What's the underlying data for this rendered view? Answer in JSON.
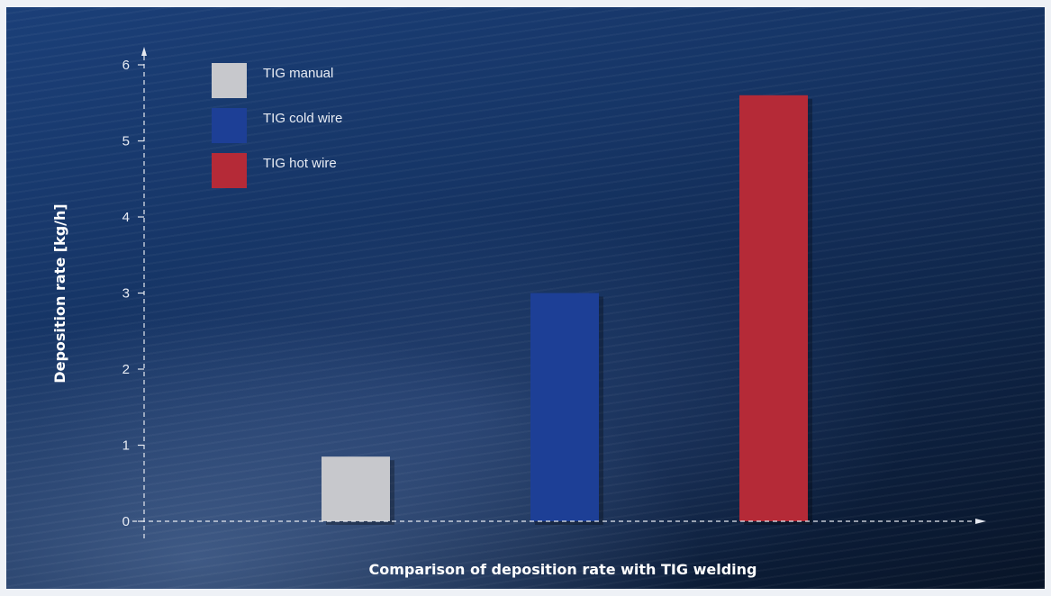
{
  "chart_data": {
    "type": "bar",
    "title": "",
    "xlabel": "Comparison of deposition rate with TIG welding",
    "ylabel": "Deposition rate [kg/h]",
    "categories": [
      "TIG manual",
      "TIG cold wire",
      "TIG hot wire"
    ],
    "values": [
      0.85,
      3.0,
      5.6
    ],
    "colors": [
      "#c7c8cc",
      "#1d3f96",
      "#b52a37"
    ],
    "ylim": [
      0,
      6
    ],
    "yticks": [
      "0",
      "1",
      "2",
      "3",
      "4",
      "5",
      "6"
    ],
    "grid": false,
    "legend": {
      "position": "top-left",
      "entries": [
        "TIG manual",
        "TIG cold wire",
        "TIG hot wire"
      ]
    }
  }
}
